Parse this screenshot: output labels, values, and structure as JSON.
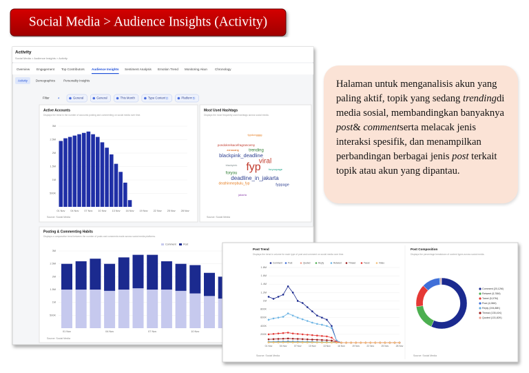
{
  "banner": {
    "title": "Social Media > Audience Insights (Activity)"
  },
  "header": {
    "title": "Activity",
    "breadcrumb": "Social Media > Audience Insights > Activity"
  },
  "tabs": [
    "Overview",
    "Engagement",
    "Top Contributors",
    "Audience Insights",
    "Sentiment Analysis",
    "Emotion Trend",
    "Monitoring Akun",
    "Chronology"
  ],
  "active_tab": 3,
  "subtabs": [
    "Activity",
    "Demographics",
    "Personality Insights"
  ],
  "active_subtab": 0,
  "filters": {
    "label": "Filter",
    "count": 4,
    "chips": [
      {
        "label": "General"
      },
      {
        "label": "General"
      },
      {
        "label": "This Month"
      },
      {
        "label": "Type Content",
        "count": 2
      },
      {
        "label": "Platform",
        "count": 5
      }
    ]
  },
  "active_accounts": {
    "type": "bar",
    "title": "Active Accounts",
    "subtitle": "Displays the trend in the number of accounts posting and commenting on social media over time.",
    "categories": [
      "01 Nov",
      null,
      null,
      "04 Nov",
      null,
      null,
      "07 Nov",
      null,
      null,
      "10 Nov",
      null,
      null,
      "13 Nov",
      null,
      null,
      "16 Nov",
      null,
      null,
      "19 Nov",
      null,
      null,
      "22 Nov",
      null,
      null,
      "25 Nov",
      null,
      null,
      "28 Nov"
    ],
    "values": [
      2450000,
      2550000,
      2600000,
      2650000,
      2700000,
      2750000,
      2800000,
      2700000,
      2600000,
      2400000,
      2200000,
      1950000,
      1600000,
      1300000,
      900000,
      250000,
      0,
      0,
      0,
      0,
      0,
      0,
      0,
      0,
      0,
      0,
      0,
      0
    ],
    "color": "#1f2fa6",
    "ylim": [
      0,
      3000000
    ],
    "yticks": [
      {
        "value": 500000,
        "label": "500K"
      },
      {
        "value": 1000000,
        "label": "1M"
      },
      {
        "value": 1500000,
        "label": "1.5M"
      },
      {
        "value": 2000000,
        "label": "2M"
      },
      {
        "value": 2500000,
        "label": "2.5M"
      },
      {
        "value": 3000000,
        "label": "3M"
      }
    ],
    "source": "Source: Social Media"
  },
  "hashtags": {
    "type": "wordcloud",
    "title": "Most Used Hashtags",
    "subtitle": "Displays the most frequently used hashtags across social media.",
    "words": [
      "fyp",
      "viral",
      "deadline_in_jakarta",
      "blackpink_deadline",
      "trending",
      "foryou",
      "fyppage",
      "deathinmepbulu_fyp",
      "pondokrelsacefragrancemy",
      "zonauang",
      "blackpink",
      "foryoupage",
      "jakarta",
      "fypdongggg"
    ],
    "source": "Source: Social Media"
  },
  "posting_habits": {
    "type": "stacked_bar",
    "title": "Posting & Commenting Habits",
    "subtitle": "Displays a comparative trend between the number of posts and comments made across social media platforms.",
    "categories": [
      "01 Nov",
      null,
      null,
      "04 Nov",
      null,
      null,
      "07 Nov",
      null,
      null,
      "10 Nov",
      null,
      null
    ],
    "series": [
      {
        "name": "Comment",
        "color": "#c6c9ee",
        "values": [
          1500000,
          1500000,
          1500000,
          1450000,
          1500000,
          1550000,
          1500000,
          1500000,
          1450000,
          1350000,
          1250000,
          1150000
        ]
      },
      {
        "name": "Post",
        "color": "#1b2a8f",
        "values": [
          1000000,
          1100000,
          1200000,
          1050000,
          1250000,
          1300000,
          1350000,
          1100000,
          1050000,
          1100000,
          900000,
          850000
        ]
      }
    ],
    "ylim": [
      0,
      3000000
    ],
    "yticks": [
      {
        "value": 500000,
        "label": "500K"
      },
      {
        "value": 1000000,
        "label": "1M"
      },
      {
        "value": 1500000,
        "label": "1.5M"
      },
      {
        "value": 2000000,
        "label": "2M"
      },
      {
        "value": 2500000,
        "label": "2.5M"
      },
      {
        "value": 3000000,
        "label": "3M"
      }
    ],
    "source": "Source: Social Media"
  },
  "post_trend": {
    "type": "line",
    "title": "Post Trend",
    "subtitle": "Displays the trend in volume for each type of post and comment on social media over time.",
    "categories": [
      "01 Nov",
      null,
      null,
      "04 Nov",
      null,
      null,
      "07 Nov",
      null,
      null,
      "10 Nov",
      null,
      null,
      "13 Nov",
      null,
      null,
      "16 Nov",
      null,
      null,
      "19 Nov",
      null,
      null,
      "22 Nov",
      null,
      null,
      "25 Nov",
      null,
      null,
      "28 Nov"
    ],
    "series": [
      {
        "name": "Comment",
        "color": "#1b2a8f",
        "values": [
          1100000,
          1050000,
          1100000,
          1150000,
          1350000,
          1200000,
          1000000,
          950000,
          850000,
          750000,
          650000,
          600000,
          550000,
          400000,
          50000,
          0,
          0,
          0,
          0,
          0,
          0,
          0,
          0,
          0,
          0,
          0,
          0,
          0
        ]
      },
      {
        "name": "Post",
        "color": "#3f6fd8",
        "values": [
          20000,
          20000,
          25000,
          25000,
          30000,
          25000,
          25000,
          20000,
          20000,
          20000,
          15000,
          15000,
          15000,
          10000,
          5000,
          0,
          0,
          0,
          0,
          0,
          0,
          0,
          0,
          0,
          0,
          0,
          0,
          0
        ]
      },
      {
        "name": "Quoted",
        "color": "#f0a090",
        "values": [
          10000,
          10000,
          10000,
          10000,
          12000,
          10000,
          10000,
          10000,
          8000,
          8000,
          8000,
          7000,
          7000,
          5000,
          2000,
          0,
          0,
          0,
          0,
          0,
          0,
          0,
          0,
          0,
          0,
          0,
          0,
          0
        ]
      },
      {
        "name": "Reply",
        "color": "#4caf50",
        "values": [
          12000,
          12000,
          13000,
          13000,
          14000,
          13000,
          12000,
          12000,
          11000,
          10000,
          10000,
          9000,
          9000,
          7000,
          2000,
          0,
          0,
          0,
          0,
          0,
          0,
          0,
          0,
          0,
          0,
          0,
          0,
          0
        ]
      },
      {
        "name": "Retweet",
        "color": "#6cb4e4",
        "values": [
          550000,
          580000,
          600000,
          620000,
          700000,
          650000,
          600000,
          560000,
          520000,
          480000,
          450000,
          430000,
          400000,
          350000,
          50000,
          0,
          0,
          0,
          0,
          0,
          0,
          0,
          0,
          0,
          0,
          0,
          0,
          0
        ]
      },
      {
        "name": "Thread",
        "color": "#9b1c1c",
        "values": [
          80000,
          85000,
          90000,
          95000,
          100000,
          95000,
          90000,
          85000,
          80000,
          75000,
          70000,
          65000,
          60000,
          50000,
          10000,
          0,
          0,
          0,
          0,
          0,
          0,
          0,
          0,
          0,
          0,
          0,
          0,
          0
        ]
      },
      {
        "name": "Tweet",
        "color": "#e53935",
        "values": [
          200000,
          210000,
          220000,
          230000,
          240000,
          220000,
          210000,
          200000,
          190000,
          180000,
          170000,
          160000,
          150000,
          120000,
          20000,
          0,
          0,
          0,
          0,
          0,
          0,
          0,
          0,
          0,
          0,
          0,
          0,
          0
        ]
      },
      {
        "name": "Video",
        "color": "#f4c07a",
        "values": [
          5000,
          5000,
          5000,
          6000,
          6000,
          5000,
          5000,
          5000,
          4000,
          4000,
          4000,
          3000,
          3000,
          2000,
          1000,
          0,
          0,
          0,
          0,
          0,
          0,
          0,
          0,
          0,
          0,
          0,
          0,
          0
        ]
      }
    ],
    "ylim": [
      0,
      1800000
    ],
    "yticks": [
      {
        "value": 200000,
        "label": "200K"
      },
      {
        "value": 400000,
        "label": "400K"
      },
      {
        "value": 600000,
        "label": "600K"
      },
      {
        "value": 800000,
        "label": "800K"
      },
      {
        "value": 1000000,
        "label": "1M"
      },
      {
        "value": 1200000,
        "label": "1.2M"
      },
      {
        "value": 1400000,
        "label": "1.4M"
      },
      {
        "value": 1600000,
        "label": "1.6M"
      },
      {
        "value": 1800000,
        "label": "1.8M"
      }
    ],
    "source": "Source: Social Media"
  },
  "post_composition": {
    "type": "pie",
    "donut": true,
    "title": "Post Composition",
    "subtitle": "Displays the percentage breakdown of content types across social media.",
    "categories": [
      "Comment",
      "Retweet",
      "Tweet",
      "Post",
      "Reply",
      "Thread",
      "Quoted"
    ],
    "values": [
      20120000,
      5780000,
      5070000,
      4080000,
      194880,
      135410,
      131820
    ],
    "value_labels": [
      "(20,12M)",
      "(5,78M)",
      "(5,07M)",
      "(4,08M)",
      "(194,88K)",
      "(135,41K)",
      "(131,82K)"
    ],
    "colors": [
      "#1b2a8f",
      "#4caf50",
      "#e53935",
      "#3f6fd8",
      "#6ab0e0",
      "#9b1c1c",
      "#f0a090"
    ],
    "source": "Source: Social Media"
  },
  "callout": {
    "parts": [
      "Halaman untuk menganalisis akun yang paling aktif, topik yang sedang ",
      "trending",
      "di media sosial, membandingkan banyaknya ",
      "post",
      "& ",
      "comment",
      "serta melacak jenis interaksi spesifik, dan menampilkan perbandingan berbagai jenis ",
      "post",
      " terkait topik atau akun yang dipantau."
    ]
  }
}
